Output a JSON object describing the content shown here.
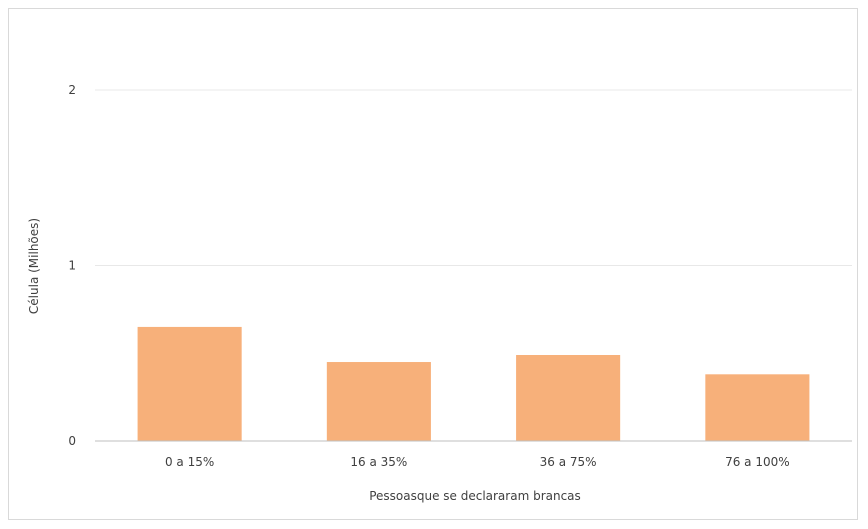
{
  "chart_data": {
    "type": "bar",
    "categories": [
      "0 a 15%",
      "16 a 35%",
      "36 a 75%",
      "76 a 100%"
    ],
    "values": [
      0.65,
      0.45,
      0.49,
      0.38
    ],
    "xlabel": "Pessoasque se declararam brancas",
    "ylabel": "Célula (Milhões)",
    "ylim": [
      0,
      2
    ],
    "yticks": [
      "0",
      "1",
      "2"
    ],
    "grid": true,
    "bar_color": "#f7b07a",
    "grid_color": "#e8e8e8",
    "axis_color": "#bfbfbf"
  }
}
